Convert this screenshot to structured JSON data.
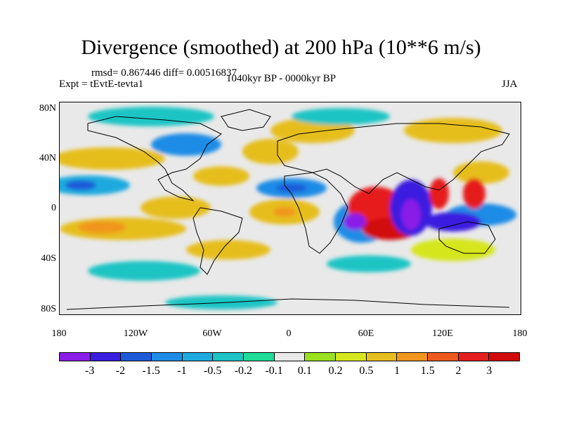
{
  "header": {
    "title": "Divergence (smoothed) at 200 hPa (10**6 m/s)",
    "stats": "rmsd= 0.867446 diff= 0.00516837",
    "experiment": "Expt = tEvtE-tevta1",
    "period": "1040kyr BP - 0000kyr BP",
    "season": "JJA"
  },
  "axes": {
    "y_ticks": [
      "80N",
      "40N",
      "0",
      "40S",
      "80S"
    ],
    "x_ticks": [
      "180",
      "120W",
      "60W",
      "0",
      "60E",
      "120E",
      "180"
    ]
  },
  "colorbar": {
    "labels": [
      "-3",
      "-2",
      "-1.5",
      "-1",
      "-0.5",
      "-0.2",
      "-0.1",
      "0.1",
      "0.2",
      "0.5",
      "1",
      "1.5",
      "2",
      "3"
    ],
    "colors": [
      "#8a1ee8",
      "#3a1ee0",
      "#1e5ad8",
      "#1e8ce6",
      "#1eaade",
      "#1ec4c4",
      "#1edc96",
      "#e9e9e9",
      "#9ae01e",
      "#d6e61e",
      "#e6be1e",
      "#f0961e",
      "#ee5a1e",
      "#e61e1e",
      "#d20a0a"
    ]
  }
}
